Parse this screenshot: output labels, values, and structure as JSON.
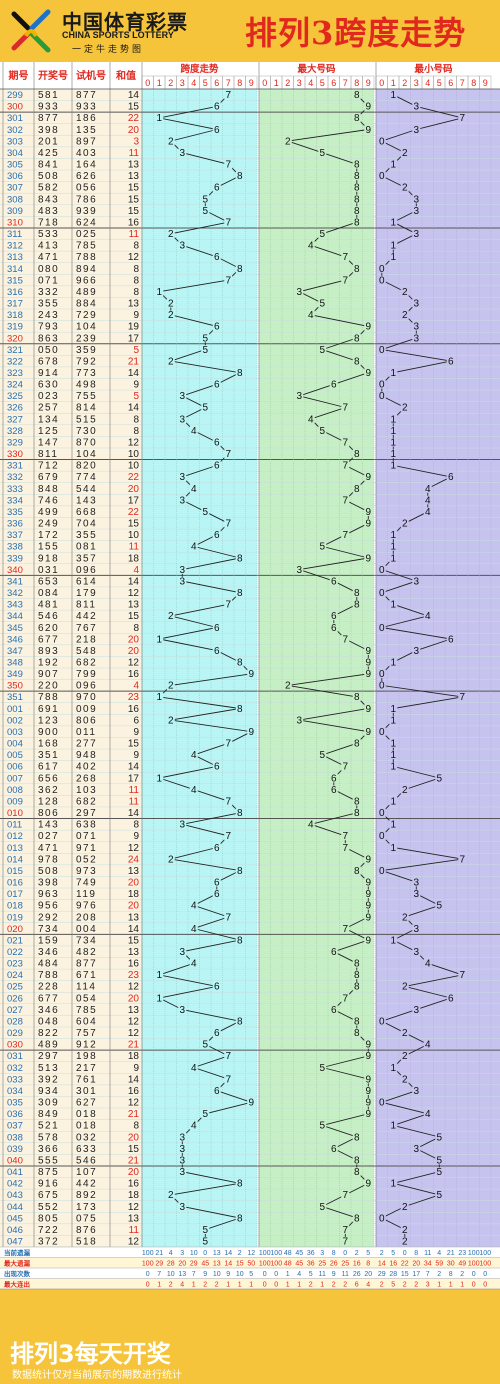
{
  "header": {
    "logo_cn": "中国体育彩票",
    "logo_en": "CHINA SPORTS LOTTERY",
    "slogan": "一定牛走势图",
    "title": "排列3跨度走势"
  },
  "table": {
    "col_headers": [
      "期号",
      "开奖号",
      "试机号",
      "和值"
    ],
    "section_headers": [
      "跨度走势",
      "最大号码",
      "最小号码"
    ],
    "digits": [
      "0",
      "1",
      "2",
      "3",
      "4",
      "5",
      "6",
      "7",
      "8",
      "9"
    ]
  },
  "colors": {
    "span_bg": "#b9f5f5",
    "max_bg": "#c6efc6",
    "min_bg": "#c6c3ef",
    "line": "#222222",
    "red_text": "#e0281f",
    "grid": "#8fb3b3"
  },
  "chart_data": {
    "type": "table",
    "rows": [
      {
        "p": "299",
        "n": "581",
        "t": "877",
        "s": "14",
        "span": 7,
        "max": 8,
        "min": 1
      },
      {
        "p": "300",
        "n": "933",
        "t": "933",
        "s": "15",
        "span": 6,
        "max": 9,
        "min": 3
      },
      {
        "p": "301",
        "n": "877",
        "t": "186",
        "s": "22",
        "span": 1,
        "max": 8,
        "min": 7
      },
      {
        "p": "302",
        "n": "398",
        "t": "135",
        "s": "20",
        "span": 6,
        "max": 9,
        "min": 3
      },
      {
        "p": "303",
        "n": "201",
        "t": "897",
        "s": "3",
        "span": 2,
        "max": 2,
        "min": 0
      },
      {
        "p": "304",
        "n": "425",
        "t": "403",
        "s": "11",
        "span": 3,
        "max": 5,
        "min": 2
      },
      {
        "p": "305",
        "n": "841",
        "t": "164",
        "s": "13",
        "span": 7,
        "max": 8,
        "min": 1
      },
      {
        "p": "306",
        "n": "508",
        "t": "626",
        "s": "13",
        "span": 8,
        "max": 8,
        "min": 0
      },
      {
        "p": "307",
        "n": "582",
        "t": "056",
        "s": "15",
        "span": 6,
        "max": 8,
        "min": 2
      },
      {
        "p": "308",
        "n": "843",
        "t": "786",
        "s": "15",
        "span": 5,
        "max": 8,
        "min": 3
      },
      {
        "p": "309",
        "n": "483",
        "t": "939",
        "s": "15",
        "span": 5,
        "max": 8,
        "min": 3
      },
      {
        "p": "310",
        "n": "718",
        "t": "624",
        "s": "16",
        "span": 7,
        "max": 8,
        "min": 1
      },
      {
        "p": "311",
        "n": "533",
        "t": "025",
        "s": "11",
        "span": 2,
        "max": 5,
        "min": 3
      },
      {
        "p": "312",
        "n": "413",
        "t": "785",
        "s": "8",
        "span": 3,
        "max": 4,
        "min": 1
      },
      {
        "p": "313",
        "n": "471",
        "t": "788",
        "s": "12",
        "span": 6,
        "max": 7,
        "min": 1
      },
      {
        "p": "314",
        "n": "080",
        "t": "894",
        "s": "8",
        "span": 8,
        "max": 8,
        "min": 0
      },
      {
        "p": "315",
        "n": "071",
        "t": "966",
        "s": "8",
        "span": 7,
        "max": 7,
        "min": 0
      },
      {
        "p": "316",
        "n": "332",
        "t": "489",
        "s": "8",
        "span": 1,
        "max": 3,
        "min": 2
      },
      {
        "p": "317",
        "n": "355",
        "t": "884",
        "s": "13",
        "span": 2,
        "max": 5,
        "min": 3
      },
      {
        "p": "318",
        "n": "243",
        "t": "729",
        "s": "9",
        "span": 2,
        "max": 4,
        "min": 2
      },
      {
        "p": "319",
        "n": "793",
        "t": "104",
        "s": "19",
        "span": 6,
        "max": 9,
        "min": 3
      },
      {
        "p": "320",
        "n": "863",
        "t": "239",
        "s": "17",
        "span": 5,
        "max": 8,
        "min": 3
      },
      {
        "p": "321",
        "n": "050",
        "t": "359",
        "s": "5",
        "span": 5,
        "max": 5,
        "min": 0
      },
      {
        "p": "322",
        "n": "678",
        "t": "792",
        "s": "21",
        "span": 2,
        "max": 8,
        "min": 6
      },
      {
        "p": "323",
        "n": "914",
        "t": "773",
        "s": "14",
        "span": 8,
        "max": 9,
        "min": 1
      },
      {
        "p": "324",
        "n": "630",
        "t": "498",
        "s": "9",
        "span": 6,
        "max": 6,
        "min": 0
      },
      {
        "p": "325",
        "n": "023",
        "t": "755",
        "s": "5",
        "span": 3,
        "max": 3,
        "min": 0
      },
      {
        "p": "326",
        "n": "257",
        "t": "814",
        "s": "14",
        "span": 5,
        "max": 7,
        "min": 2
      },
      {
        "p": "327",
        "n": "134",
        "t": "515",
        "s": "8",
        "span": 3,
        "max": 4,
        "min": 1
      },
      {
        "p": "328",
        "n": "125",
        "t": "730",
        "s": "8",
        "span": 4,
        "max": 5,
        "min": 1
      },
      {
        "p": "329",
        "n": "147",
        "t": "870",
        "s": "12",
        "span": 6,
        "max": 7,
        "min": 1
      },
      {
        "p": "330",
        "n": "811",
        "t": "104",
        "s": "10",
        "span": 7,
        "max": 8,
        "min": 1
      },
      {
        "p": "331",
        "n": "712",
        "t": "820",
        "s": "10",
        "span": 6,
        "max": 7,
        "min": 1
      },
      {
        "p": "332",
        "n": "679",
        "t": "774",
        "s": "22",
        "span": 3,
        "max": 9,
        "min": 6
      },
      {
        "p": "333",
        "n": "848",
        "t": "544",
        "s": "20",
        "span": 4,
        "max": 8,
        "min": 4
      },
      {
        "p": "334",
        "n": "746",
        "t": "143",
        "s": "17",
        "span": 3,
        "max": 7,
        "min": 4
      },
      {
        "p": "335",
        "n": "499",
        "t": "668",
        "s": "22",
        "span": 5,
        "max": 9,
        "min": 4
      },
      {
        "p": "336",
        "n": "249",
        "t": "704",
        "s": "15",
        "span": 7,
        "max": 9,
        "min": 2
      },
      {
        "p": "337",
        "n": "172",
        "t": "355",
        "s": "10",
        "span": 6,
        "max": 7,
        "min": 1
      },
      {
        "p": "338",
        "n": "155",
        "t": "081",
        "s": "11",
        "span": 4,
        "max": 5,
        "min": 1
      },
      {
        "p": "339",
        "n": "918",
        "t": "357",
        "s": "18",
        "span": 8,
        "max": 9,
        "min": 1
      },
      {
        "p": "340",
        "n": "031",
        "t": "096",
        "s": "4",
        "span": 3,
        "max": 3,
        "min": 0
      },
      {
        "p": "341",
        "n": "653",
        "t": "614",
        "s": "14",
        "span": 3,
        "max": 6,
        "min": 3
      },
      {
        "p": "342",
        "n": "084",
        "t": "179",
        "s": "12",
        "span": 8,
        "max": 8,
        "min": 0
      },
      {
        "p": "343",
        "n": "481",
        "t": "811",
        "s": "13",
        "span": 7,
        "max": 8,
        "min": 1
      },
      {
        "p": "344",
        "n": "546",
        "t": "442",
        "s": "15",
        "span": 2,
        "max": 6,
        "min": 4
      },
      {
        "p": "345",
        "n": "620",
        "t": "767",
        "s": "8",
        "span": 6,
        "max": 6,
        "min": 0
      },
      {
        "p": "346",
        "n": "677",
        "t": "218",
        "s": "20",
        "span": 1,
        "max": 7,
        "min": 6
      },
      {
        "p": "347",
        "n": "893",
        "t": "548",
        "s": "20",
        "span": 6,
        "max": 9,
        "min": 3
      },
      {
        "p": "348",
        "n": "192",
        "t": "682",
        "s": "12",
        "span": 8,
        "max": 9,
        "min": 1
      },
      {
        "p": "349",
        "n": "907",
        "t": "799",
        "s": "16",
        "span": 9,
        "max": 9,
        "min": 0
      },
      {
        "p": "350",
        "n": "220",
        "t": "096",
        "s": "4",
        "span": 2,
        "max": 2,
        "min": 0
      },
      {
        "p": "351",
        "n": "788",
        "t": "970",
        "s": "23",
        "span": 1,
        "max": 8,
        "min": 7
      },
      {
        "p": "001",
        "n": "691",
        "t": "009",
        "s": "16",
        "span": 8,
        "max": 9,
        "min": 1
      },
      {
        "p": "002",
        "n": "123",
        "t": "806",
        "s": "6",
        "span": 2,
        "max": 3,
        "min": 1
      },
      {
        "p": "003",
        "n": "900",
        "t": "011",
        "s": "9",
        "span": 9,
        "max": 9,
        "min": 0
      },
      {
        "p": "004",
        "n": "168",
        "t": "277",
        "s": "15",
        "span": 7,
        "max": 8,
        "min": 1
      },
      {
        "p": "005",
        "n": "351",
        "t": "948",
        "s": "9",
        "span": 4,
        "max": 5,
        "min": 1
      },
      {
        "p": "006",
        "n": "617",
        "t": "402",
        "s": "14",
        "span": 6,
        "max": 7,
        "min": 1
      },
      {
        "p": "007",
        "n": "656",
        "t": "268",
        "s": "17",
        "span": 1,
        "max": 6,
        "min": 5
      },
      {
        "p": "008",
        "n": "362",
        "t": "103",
        "s": "11",
        "span": 4,
        "max": 6,
        "min": 2
      },
      {
        "p": "009",
        "n": "128",
        "t": "682",
        "s": "11",
        "span": 7,
        "max": 8,
        "min": 1
      },
      {
        "p": "010",
        "n": "806",
        "t": "297",
        "s": "14",
        "span": 8,
        "max": 8,
        "min": 0
      },
      {
        "p": "011",
        "n": "143",
        "t": "638",
        "s": "8",
        "span": 3,
        "max": 4,
        "min": 1
      },
      {
        "p": "012",
        "n": "027",
        "t": "071",
        "s": "9",
        "span": 7,
        "max": 7,
        "min": 0
      },
      {
        "p": "013",
        "n": "471",
        "t": "971",
        "s": "12",
        "span": 6,
        "max": 7,
        "min": 1
      },
      {
        "p": "014",
        "n": "978",
        "t": "052",
        "s": "24",
        "span": 2,
        "max": 9,
        "min": 7
      },
      {
        "p": "015",
        "n": "508",
        "t": "973",
        "s": "13",
        "span": 8,
        "max": 8,
        "min": 0
      },
      {
        "p": "016",
        "n": "398",
        "t": "749",
        "s": "20",
        "span": 6,
        "max": 9,
        "min": 3
      },
      {
        "p": "017",
        "n": "963",
        "t": "119",
        "s": "18",
        "span": 6,
        "max": 9,
        "min": 3
      },
      {
        "p": "018",
        "n": "956",
        "t": "976",
        "s": "20",
        "span": 4,
        "max": 9,
        "min": 5
      },
      {
        "p": "019",
        "n": "292",
        "t": "208",
        "s": "13",
        "span": 7,
        "max": 9,
        "min": 2
      },
      {
        "p": "020",
        "n": "734",
        "t": "004",
        "s": "14",
        "span": 4,
        "max": 7,
        "min": 3
      },
      {
        "p": "021",
        "n": "159",
        "t": "734",
        "s": "15",
        "span": 8,
        "max": 9,
        "min": 1
      },
      {
        "p": "022",
        "n": "346",
        "t": "482",
        "s": "13",
        "span": 3,
        "max": 6,
        "min": 3
      },
      {
        "p": "023",
        "n": "484",
        "t": "877",
        "s": "16",
        "span": 4,
        "max": 8,
        "min": 4
      },
      {
        "p": "024",
        "n": "788",
        "t": "671",
        "s": "23",
        "span": 1,
        "max": 8,
        "min": 7
      },
      {
        "p": "025",
        "n": "228",
        "t": "114",
        "s": "12",
        "span": 6,
        "max": 8,
        "min": 2
      },
      {
        "p": "026",
        "n": "677",
        "t": "054",
        "s": "20",
        "span": 1,
        "max": 7,
        "min": 6
      },
      {
        "p": "027",
        "n": "346",
        "t": "785",
        "s": "13",
        "span": 3,
        "max": 6,
        "min": 3
      },
      {
        "p": "028",
        "n": "048",
        "t": "604",
        "s": "12",
        "span": 8,
        "max": 8,
        "min": 0
      },
      {
        "p": "029",
        "n": "822",
        "t": "757",
        "s": "12",
        "span": 6,
        "max": 8,
        "min": 2
      },
      {
        "p": "030",
        "n": "489",
        "t": "912",
        "s": "21",
        "span": 5,
        "max": 9,
        "min": 4
      },
      {
        "p": "031",
        "n": "297",
        "t": "198",
        "s": "18",
        "span": 7,
        "max": 9,
        "min": 2
      },
      {
        "p": "032",
        "n": "513",
        "t": "217",
        "s": "9",
        "span": 4,
        "max": 5,
        "min": 1
      },
      {
        "p": "033",
        "n": "392",
        "t": "761",
        "s": "14",
        "span": 7,
        "max": 9,
        "min": 2
      },
      {
        "p": "034",
        "n": "934",
        "t": "301",
        "s": "16",
        "span": 6,
        "max": 9,
        "min": 3
      },
      {
        "p": "035",
        "n": "309",
        "t": "627",
        "s": "12",
        "span": 9,
        "max": 9,
        "min": 0
      },
      {
        "p": "036",
        "n": "849",
        "t": "018",
        "s": "21",
        "span": 5,
        "max": 9,
        "min": 4
      },
      {
        "p": "037",
        "n": "521",
        "t": "018",
        "s": "8",
        "span": 4,
        "max": 5,
        "min": 1
      },
      {
        "p": "038",
        "n": "578",
        "t": "032",
        "s": "20",
        "span": 3,
        "max": 8,
        "min": 5
      },
      {
        "p": "039",
        "n": "366",
        "t": "633",
        "s": "15",
        "span": 3,
        "max": 6,
        "min": 3
      },
      {
        "p": "040",
        "n": "555",
        "t": "546",
        "s": "21",
        "span": 3,
        "max": 8,
        "min": 5
      },
      {
        "p": "041",
        "n": "875",
        "t": "107",
        "s": "20",
        "span": 3,
        "max": 8,
        "min": 5
      },
      {
        "p": "042",
        "n": "916",
        "t": "442",
        "s": "16",
        "span": 8,
        "max": 9,
        "min": 1
      },
      {
        "p": "043",
        "n": "675",
        "t": "892",
        "s": "18",
        "span": 2,
        "max": 7,
        "min": 5
      },
      {
        "p": "044",
        "n": "552",
        "t": "173",
        "s": "12",
        "span": 3,
        "max": 5,
        "min": 2
      },
      {
        "p": "045",
        "n": "805",
        "t": "075",
        "s": "13",
        "span": 8,
        "max": 8,
        "min": 0
      },
      {
        "p": "046",
        "n": "722",
        "t": "876",
        "s": "11",
        "span": 5,
        "max": 7,
        "min": 2
      },
      {
        "p": "047",
        "n": "372",
        "t": "518",
        "s": "12",
        "span": 5,
        "max": 7,
        "min": 2
      }
    ],
    "stats": [
      {
        "label": "当前遗漏",
        "span": [
          "100",
          "21",
          "4",
          "3",
          "10",
          "0",
          "13",
          "14",
          "2",
          "12"
        ],
        "max": [
          "100",
          "100",
          "48",
          "45",
          "36",
          "3",
          "8",
          "0",
          "2",
          "5"
        ],
        "min": [
          "2",
          "5",
          "0",
          "8",
          "11",
          "4",
          "21",
          "23",
          "100",
          "100"
        ]
      },
      {
        "label": "最大遗漏",
        "span": [
          "100",
          "29",
          "28",
          "20",
          "29",
          "45",
          "13",
          "14",
          "15",
          "50"
        ],
        "max": [
          "100",
          "100",
          "48",
          "45",
          "36",
          "25",
          "26",
          "25",
          "16",
          "8"
        ],
        "min": [
          "14",
          "16",
          "22",
          "20",
          "34",
          "59",
          "30",
          "49",
          "100",
          "100"
        ]
      },
      {
        "label": "出现次数",
        "span": [
          "0",
          "7",
          "10",
          "13",
          "7",
          "9",
          "10",
          "9",
          "10",
          "5"
        ],
        "max": [
          "0",
          "0",
          "1",
          "4",
          "5",
          "11",
          "9",
          "11",
          "26",
          "20"
        ],
        "min": [
          "29",
          "28",
          "15",
          "17",
          "7",
          "2",
          "8",
          "2",
          "0",
          "0"
        ]
      },
      {
        "label": "最大连出",
        "span": [
          "0",
          "1",
          "2",
          "4",
          "1",
          "2",
          "2",
          "1",
          "1",
          "1"
        ],
        "max": [
          "0",
          "0",
          "1",
          "1",
          "2",
          "1",
          "2",
          "2",
          "6",
          "4"
        ],
        "min": [
          "2",
          "5",
          "2",
          "2",
          "3",
          "1",
          "1",
          "1",
          "0",
          "0"
        ]
      }
    ]
  },
  "footer": {
    "title": "排列3每天开奖",
    "note": "数据统计仅对当前展示的期数进行统计"
  }
}
